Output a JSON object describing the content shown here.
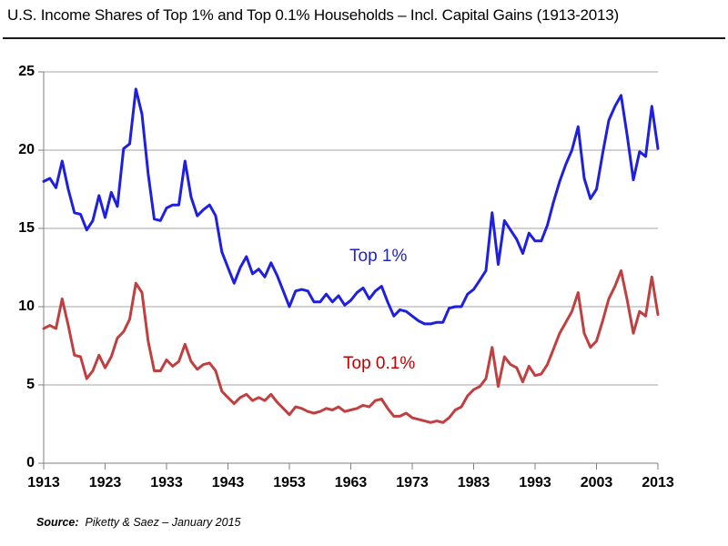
{
  "header": {
    "title": "U.S. Income Shares of Top 1% and Top 0.1% Households – Incl. Capital Gains (1913-2013)"
  },
  "source": {
    "label": "Source:",
    "text": "Piketty & Saez – January 2015"
  },
  "colors": {
    "top1_line": "#1f1fe0",
    "top1_label": "#2222cc",
    "top01_line": "#bf4040",
    "top01_label": "#c00000",
    "gridline": "#a6a6a6",
    "axis": "#7f7f7f",
    "text": "#000000"
  },
  "chart_data": {
    "type": "line",
    "title": "U.S. Income Shares of Top 1% and Top 0.1% Households – Incl. Capital Gains (1913-2013)",
    "xlabel": "",
    "ylabel": "",
    "x_range": [
      1913,
      2013
    ],
    "ylim": [
      0,
      25
    ],
    "x_ticks": [
      1913,
      1923,
      1933,
      1943,
      1953,
      1963,
      1973,
      1983,
      1993,
      2003,
      2013
    ],
    "y_ticks": [
      0,
      5,
      10,
      15,
      20,
      25
    ],
    "grid": "horizontal",
    "legend_position": "inline-annotations",
    "x_start_year": 1913,
    "x_step_years": 1,
    "series": [
      {
        "name": "Top 1%",
        "color": "#1f1fe0",
        "values": [
          18.0,
          18.2,
          17.6,
          19.3,
          17.5,
          16.0,
          15.9,
          14.9,
          15.5,
          17.1,
          15.7,
          17.3,
          16.4,
          20.1,
          20.4,
          23.9,
          22.3,
          18.5,
          15.6,
          15.5,
          16.3,
          16.5,
          16.5,
          19.3,
          17.0,
          15.8,
          16.2,
          16.5,
          15.8,
          13.5,
          12.5,
          11.5,
          12.5,
          13.2,
          12.1,
          12.4,
          11.9,
          12.8,
          12.0,
          11.0,
          10.0,
          11.0,
          11.1,
          11.0,
          10.3,
          10.3,
          10.8,
          10.3,
          10.7,
          10.1,
          10.4,
          10.9,
          11.2,
          10.5,
          11.0,
          11.3,
          10.3,
          9.4,
          9.8,
          9.7,
          9.4,
          9.1,
          8.9,
          8.9,
          9.0,
          9.0,
          9.9,
          10.0,
          10.0,
          10.8,
          11.1,
          11.7,
          12.3,
          16.0,
          12.7,
          15.5,
          14.9,
          14.3,
          13.4,
          14.7,
          14.2,
          14.2,
          15.2,
          16.7,
          18.0,
          19.1,
          20.0,
          21.5,
          18.2,
          16.9,
          17.5,
          19.8,
          21.9,
          22.8,
          23.5,
          20.9,
          18.1,
          19.9,
          19.6,
          22.8,
          20.1
        ]
      },
      {
        "name": "Top 0.1%",
        "color": "#bf4040",
        "values": [
          8.6,
          8.8,
          8.6,
          10.5,
          8.8,
          6.9,
          6.8,
          5.4,
          5.9,
          6.9,
          6.1,
          6.8,
          8.0,
          8.4,
          9.2,
          11.5,
          10.9,
          7.8,
          5.9,
          5.9,
          6.6,
          6.2,
          6.5,
          7.6,
          6.5,
          6.0,
          6.3,
          6.4,
          5.9,
          4.6,
          4.2,
          3.8,
          4.2,
          4.4,
          4.0,
          4.2,
          4.0,
          4.4,
          3.9,
          3.5,
          3.1,
          3.6,
          3.5,
          3.3,
          3.2,
          3.3,
          3.5,
          3.4,
          3.6,
          3.3,
          3.4,
          3.5,
          3.7,
          3.6,
          4.0,
          4.1,
          3.5,
          3.0,
          3.0,
          3.2,
          2.9,
          2.8,
          2.7,
          2.6,
          2.7,
          2.6,
          2.9,
          3.4,
          3.6,
          4.3,
          4.7,
          4.9,
          5.4,
          7.4,
          4.9,
          6.8,
          6.3,
          6.1,
          5.2,
          6.2,
          5.6,
          5.7,
          6.3,
          7.3,
          8.3,
          9.0,
          9.7,
          10.9,
          8.3,
          7.4,
          7.8,
          9.1,
          10.5,
          11.3,
          12.3,
          10.4,
          8.3,
          9.7,
          9.4,
          11.9,
          9.5
        ]
      }
    ],
    "annotations": [
      {
        "text": "Top 1%",
        "series": 0
      },
      {
        "text": "Top 0.1%",
        "series": 1
      }
    ]
  }
}
